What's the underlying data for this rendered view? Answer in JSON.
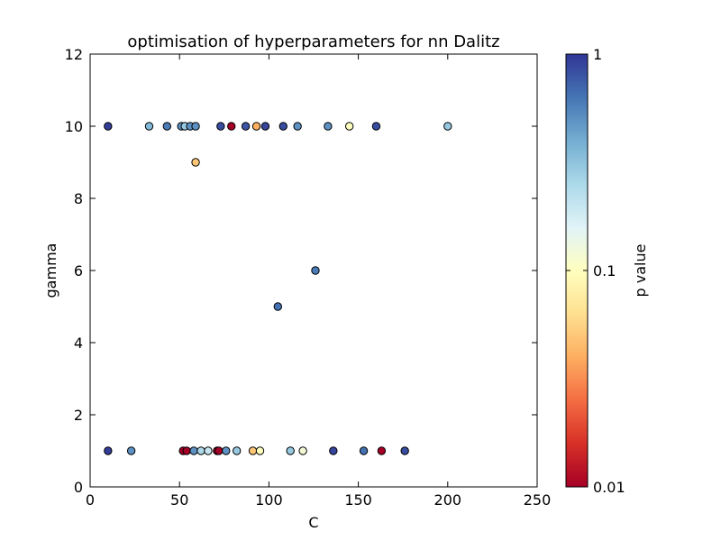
{
  "chart_data": {
    "type": "scatter",
    "title": "optimisation of hyperparameters for nn Dalitz",
    "xlabel": "C",
    "ylabel": "gamma",
    "xlim": [
      0,
      250
    ],
    "ylim": [
      0,
      12
    ],
    "xticks": [
      "0",
      "50",
      "100",
      "150",
      "200",
      "250"
    ],
    "xtick_values": [
      0,
      50,
      100,
      150,
      200,
      250
    ],
    "yticks": [
      "0",
      "2",
      "4",
      "6",
      "8",
      "10",
      "12"
    ],
    "ytick_values": [
      0,
      2,
      4,
      6,
      8,
      10,
      12
    ],
    "colorbar": {
      "label": "p value",
      "scale": "log",
      "range": [
        0.01,
        1
      ],
      "ticks": [
        "0.01",
        "0.1",
        "1"
      ],
      "tick_values": [
        0.01,
        0.1,
        1
      ],
      "colormap": "RdYlBu",
      "colors": [
        "#a50026",
        "#d73027",
        "#f46d43",
        "#fdae61",
        "#fee090",
        "#ffffbf",
        "#e0f3f8",
        "#abd9e9",
        "#74add1",
        "#4575b4",
        "#313695"
      ]
    },
    "points": [
      {
        "C": 10,
        "gamma": 10,
        "p": 0.95
      },
      {
        "C": 33,
        "gamma": 10,
        "p": 0.35
      },
      {
        "C": 43,
        "gamma": 10,
        "p": 0.6
      },
      {
        "C": 51,
        "gamma": 10,
        "p": 0.5
      },
      {
        "C": 53,
        "gamma": 10,
        "p": 0.3
      },
      {
        "C": 56,
        "gamma": 10,
        "p": 0.5
      },
      {
        "C": 59,
        "gamma": 10,
        "p": 0.5
      },
      {
        "C": 73,
        "gamma": 10,
        "p": 0.85
      },
      {
        "C": 79,
        "gamma": 10,
        "p": 0.01
      },
      {
        "C": 87,
        "gamma": 10,
        "p": 0.8
      },
      {
        "C": 93,
        "gamma": 10,
        "p": 0.04
      },
      {
        "C": 98,
        "gamma": 10,
        "p": 0.9
      },
      {
        "C": 108,
        "gamma": 10,
        "p": 0.85
      },
      {
        "C": 116,
        "gamma": 10,
        "p": 0.5
      },
      {
        "C": 133,
        "gamma": 10,
        "p": 0.5
      },
      {
        "C": 145,
        "gamma": 10,
        "p": 0.1
      },
      {
        "C": 160,
        "gamma": 10,
        "p": 0.85
      },
      {
        "C": 200,
        "gamma": 10,
        "p": 0.3
      },
      {
        "C": 59,
        "gamma": 9,
        "p": 0.05
      },
      {
        "C": 126,
        "gamma": 6,
        "p": 0.6
      },
      {
        "C": 105,
        "gamma": 5,
        "p": 0.65
      },
      {
        "C": 10,
        "gamma": 1,
        "p": 0.95
      },
      {
        "C": 23,
        "gamma": 1,
        "p": 0.5
      },
      {
        "C": 52,
        "gamma": 1,
        "p": 0.01
      },
      {
        "C": 54,
        "gamma": 1,
        "p": 0.01
      },
      {
        "C": 58,
        "gamma": 1,
        "p": 0.5
      },
      {
        "C": 62,
        "gamma": 1,
        "p": 0.25
      },
      {
        "C": 66,
        "gamma": 1,
        "p": 0.2
      },
      {
        "C": 71,
        "gamma": 1,
        "p": 0.01
      },
      {
        "C": 72,
        "gamma": 1,
        "p": 0.01
      },
      {
        "C": 76,
        "gamma": 1,
        "p": 0.5
      },
      {
        "C": 82,
        "gamma": 1,
        "p": 0.3
      },
      {
        "C": 91,
        "gamma": 1,
        "p": 0.05
      },
      {
        "C": 95,
        "gamma": 1,
        "p": 0.1
      },
      {
        "C": 112,
        "gamma": 1,
        "p": 0.3
      },
      {
        "C": 119,
        "gamma": 1,
        "p": 0.12
      },
      {
        "C": 136,
        "gamma": 1,
        "p": 0.9
      },
      {
        "C": 153,
        "gamma": 1,
        "p": 0.65
      },
      {
        "C": 163,
        "gamma": 1,
        "p": 0.01
      },
      {
        "C": 176,
        "gamma": 1,
        "p": 0.85
      }
    ]
  }
}
